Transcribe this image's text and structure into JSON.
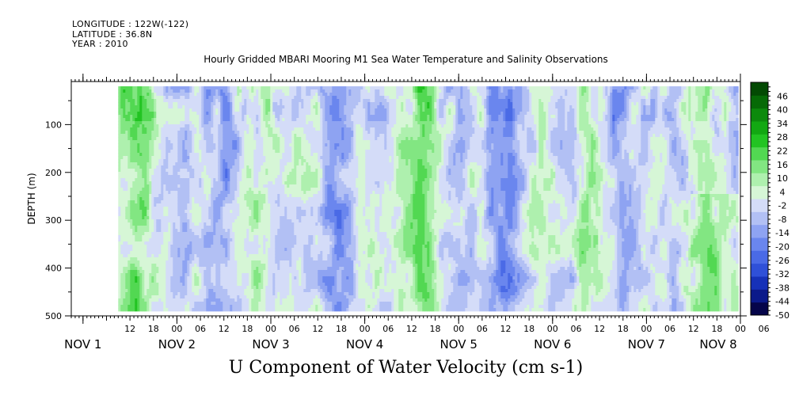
{
  "header": {
    "longitude": "LONGITUDE : 122W(-122)",
    "latitude": "LATITUDE : 36.8N",
    "year": "YEAR : 2010"
  },
  "chart_data": {
    "type": "heatmap",
    "title": "Hourly Gridded MBARI Mooring M1 Sea Water Temperature and Salinity Observations",
    "xlabel": "U Component of Water Velocity (cm s-1)",
    "ylabel": "DEPTH (m)",
    "ylim": [
      500,
      10
    ],
    "y_ticks": [
      "100",
      "200",
      "300",
      "400",
      "500"
    ],
    "x_hour_ticks": [
      "12",
      "18",
      "00",
      "06",
      "12",
      "18",
      "00",
      "06",
      "12",
      "18",
      "00",
      "06",
      "12",
      "18",
      "00",
      "06",
      "12",
      "18",
      "00",
      "06",
      "12",
      "18",
      "00",
      "06",
      "12",
      "18",
      "00",
      "06"
    ],
    "x_day_labels": [
      "NOV 1",
      "NOV 2",
      "NOV 3",
      "NOV 4",
      "NOV 5",
      "NOV 6",
      "NOV 7",
      "NOV 8"
    ],
    "colorbar": {
      "labels": [
        "46",
        "40",
        "34",
        "28",
        "22",
        "16",
        "10",
        "4",
        "-2",
        "-8",
        "-14",
        "-20",
        "-26",
        "-32",
        "-38",
        "-44",
        "-50"
      ],
      "range": [
        -50,
        52
      ],
      "colors": [
        "#05054a",
        "#0b1a8a",
        "#1631b8",
        "#2f50d8",
        "#4a6ae6",
        "#6a86ee",
        "#8ea3f2",
        "#b2c0f4",
        "#d4dcf8",
        "#d6f6d6",
        "#aef0ae",
        "#82e682",
        "#52d852",
        "#22c422",
        "#12a812",
        "#0c8a0c",
        "#066a06",
        "#034a03"
      ]
    },
    "data_extent": {
      "depth": [
        20,
        485
      ],
      "time_start": "NOV 1 09",
      "time_end": "NOV 8 09"
    }
  }
}
